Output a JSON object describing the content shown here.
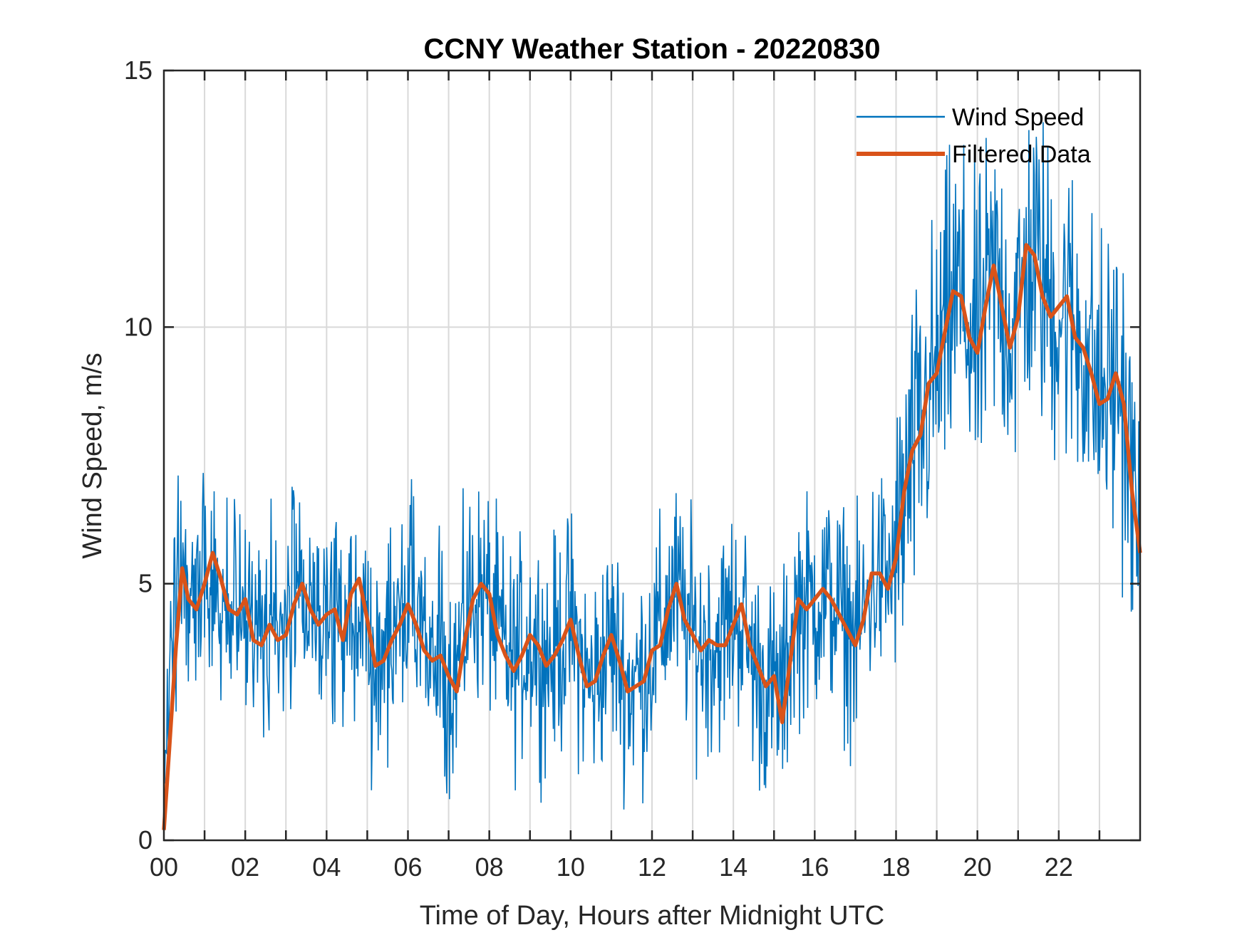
{
  "chart_data": {
    "type": "line",
    "title": "CCNY Weather Station - 20220830",
    "xlabel": "Time of Day, Hours after Midnight UTC",
    "ylabel": "Wind Speed, m/s",
    "xlim": [
      0,
      24
    ],
    "ylim": [
      0,
      15
    ],
    "x_tick_labels": [
      "00",
      "02",
      "04",
      "06",
      "08",
      "10",
      "12",
      "14",
      "16",
      "18",
      "20",
      "22"
    ],
    "y_tick_labels": [
      "0",
      "5",
      "10",
      "15"
    ],
    "grid": true,
    "legend_position": "top-right",
    "series": [
      {
        "name": "Wind Speed",
        "color": "#0072BD",
        "style": "thin-noisy",
        "description_points": {
          "x": [
            0,
            0.5,
            1,
            1.5,
            2,
            2.5,
            3,
            3.5,
            4,
            4.5,
            5,
            5.5,
            6,
            6.5,
            7,
            7.5,
            8,
            8.5,
            9,
            9.5,
            10,
            10.5,
            11,
            11.5,
            12,
            12.5,
            13,
            13.5,
            14,
            14.5,
            15,
            15.5,
            16,
            16.5,
            17,
            17.5,
            18,
            18.5,
            19,
            19.5,
            20,
            20.5,
            21,
            21.5,
            22,
            22.5,
            23,
            23.5,
            24
          ],
          "y": [
            4.5,
            5.0,
            5.3,
            4.5,
            4.0,
            3.9,
            4.8,
            4.3,
            4.3,
            4.5,
            3.6,
            4.0,
            4.6,
            3.7,
            3.2,
            4.9,
            4.5,
            3.5,
            4.0,
            3.6,
            4.2,
            3.0,
            3.8,
            3.0,
            3.8,
            4.8,
            4.0,
            3.8,
            4.6,
            3.3,
            2.6,
            4.5,
            4.6,
            4.7,
            4.0,
            5.0,
            5.4,
            7.5,
            9.0,
            10.6,
            9.6,
            11.0,
            10.2,
            11.5,
            10.3,
            10.0,
            8.8,
            9.0,
            5.5
          ]
        },
        "noise_amplitude": 1.5
      },
      {
        "name": "Filtered Data",
        "color": "#D95319",
        "style": "thick-smooth",
        "x": [
          0,
          0.15,
          0.3,
          0.45,
          0.6,
          0.8,
          1.0,
          1.2,
          1.4,
          1.6,
          1.8,
          2.0,
          2.2,
          2.4,
          2.6,
          2.8,
          3.0,
          3.2,
          3.4,
          3.6,
          3.8,
          4.0,
          4.2,
          4.4,
          4.6,
          4.8,
          5.0,
          5.2,
          5.4,
          5.6,
          5.8,
          6.0,
          6.2,
          6.4,
          6.6,
          6.8,
          7.0,
          7.2,
          7.4,
          7.6,
          7.8,
          8.0,
          8.2,
          8.4,
          8.6,
          8.8,
          9.0,
          9.2,
          9.4,
          9.6,
          9.8,
          10.0,
          10.2,
          10.4,
          10.6,
          10.8,
          11.0,
          11.2,
          11.4,
          11.6,
          11.8,
          12.0,
          12.2,
          12.4,
          12.6,
          12.8,
          13.0,
          13.2,
          13.4,
          13.6,
          13.8,
          14.0,
          14.2,
          14.4,
          14.6,
          14.8,
          15.0,
          15.2,
          15.4,
          15.6,
          15.8,
          16.0,
          16.2,
          16.4,
          16.6,
          16.8,
          17.0,
          17.2,
          17.4,
          17.6,
          17.8,
          18.0,
          18.2,
          18.4,
          18.6,
          18.8,
          19.0,
          19.2,
          19.4,
          19.6,
          19.8,
          20.0,
          20.2,
          20.4,
          20.6,
          20.8,
          21.0,
          21.2,
          21.4,
          21.6,
          21.8,
          22.0,
          22.2,
          22.4,
          22.6,
          22.8,
          23.0,
          23.2,
          23.4,
          23.6,
          23.8,
          24.0
        ],
        "y": [
          0.2,
          2.0,
          3.8,
          5.3,
          4.7,
          4.5,
          5.0,
          5.6,
          5.1,
          4.5,
          4.4,
          4.7,
          3.9,
          3.8,
          4.2,
          3.9,
          4.0,
          4.6,
          5.0,
          4.5,
          4.2,
          4.4,
          4.5,
          3.9,
          4.8,
          5.1,
          4.3,
          3.4,
          3.5,
          3.9,
          4.2,
          4.6,
          4.2,
          3.7,
          3.5,
          3.6,
          3.2,
          2.9,
          3.9,
          4.7,
          5.0,
          4.8,
          4.0,
          3.6,
          3.3,
          3.6,
          4.0,
          3.8,
          3.4,
          3.6,
          3.9,
          4.3,
          3.6,
          3.0,
          3.1,
          3.6,
          4.0,
          3.5,
          2.9,
          3.0,
          3.1,
          3.7,
          3.8,
          4.5,
          5.0,
          4.3,
          4.0,
          3.7,
          3.9,
          3.8,
          3.8,
          4.2,
          4.6,
          3.8,
          3.4,
          3.0,
          3.2,
          2.3,
          3.5,
          4.7,
          4.5,
          4.7,
          4.9,
          4.7,
          4.4,
          4.1,
          3.8,
          4.3,
          5.2,
          5.2,
          4.9,
          5.5,
          6.8,
          7.6,
          7.9,
          8.9,
          9.1,
          9.9,
          10.7,
          10.6,
          9.8,
          9.5,
          10.4,
          11.2,
          10.4,
          9.6,
          10.2,
          11.6,
          11.4,
          10.6,
          10.2,
          10.4,
          10.6,
          9.8,
          9.6,
          9.1,
          8.5,
          8.6,
          9.1,
          8.5,
          6.8,
          5.6
        ]
      }
    ]
  }
}
